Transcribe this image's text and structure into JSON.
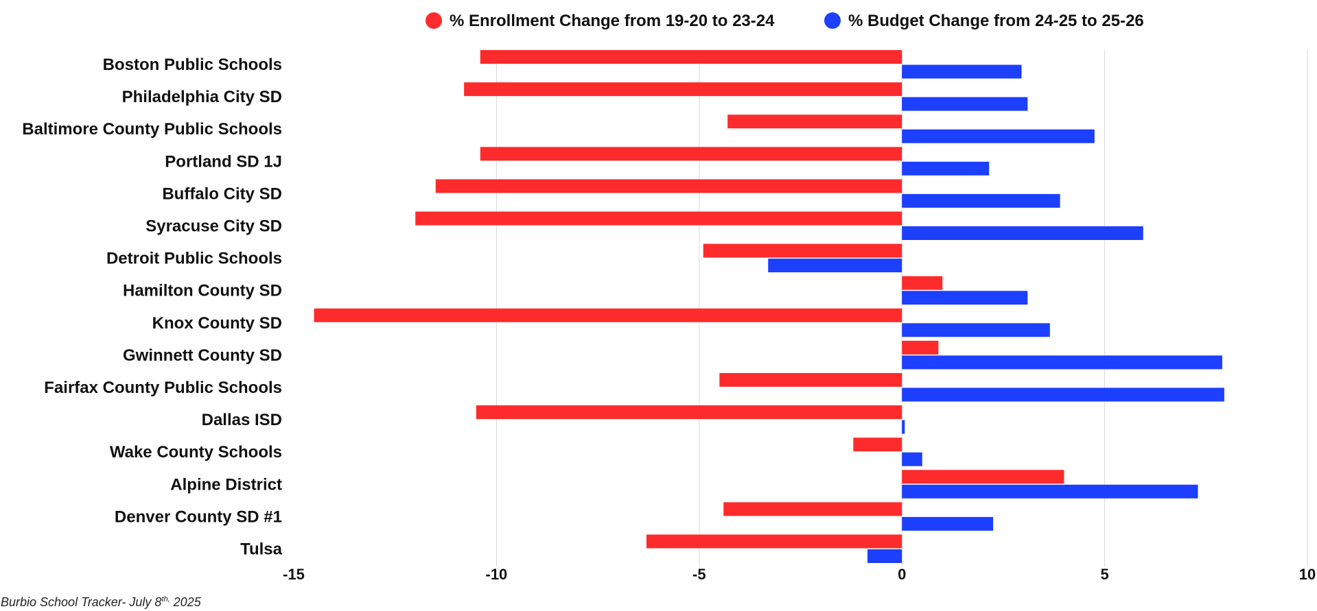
{
  "chart_data": {
    "type": "bar",
    "orientation": "horizontal",
    "categories": [
      "Boston Public Schools",
      "Philadelphia City SD",
      "Baltimore County Public Schools",
      "Portland SD 1J",
      "Buffalo City SD",
      "Syracuse City SD",
      "Detroit Public Schools",
      "Hamilton County SD",
      "Knox County SD",
      "Gwinnett County SD",
      "Fairfax County Public Schools",
      "Dallas ISD",
      "Wake County Schools",
      "Alpine District",
      "Denver County SD #1",
      "Tulsa"
    ],
    "series": [
      {
        "name": "% Enrollment Change from 19-20 to 23-24",
        "color": "#fe2b2c",
        "values": [
          -10.4,
          -10.8,
          -4.3,
          -10.4,
          -11.5,
          -12.0,
          -4.9,
          1.0,
          -14.5,
          0.9,
          -4.5,
          -10.5,
          -1.2,
          4.0,
          -4.4,
          -6.3
        ]
      },
      {
        "name": "% Budget Change from 24-25 to 25-26",
        "color": "#1d3ffe",
        "values": [
          2.95,
          3.1,
          4.75,
          2.15,
          3.9,
          5.95,
          -3.3,
          3.1,
          3.65,
          7.9,
          7.95,
          0.07,
          0.5,
          7.3,
          2.25,
          -0.85
        ]
      }
    ],
    "xlim": [
      -15,
      10
    ],
    "xticks": [
      -15,
      -10,
      -5,
      0,
      5,
      10
    ],
    "grid": true,
    "legend": "top",
    "title": "",
    "xlabel": "",
    "ylabel": ""
  },
  "footer": {
    "prefix": "Burbio School Tracker- July  8",
    "ordinal": "th,",
    "year": " 2025"
  }
}
